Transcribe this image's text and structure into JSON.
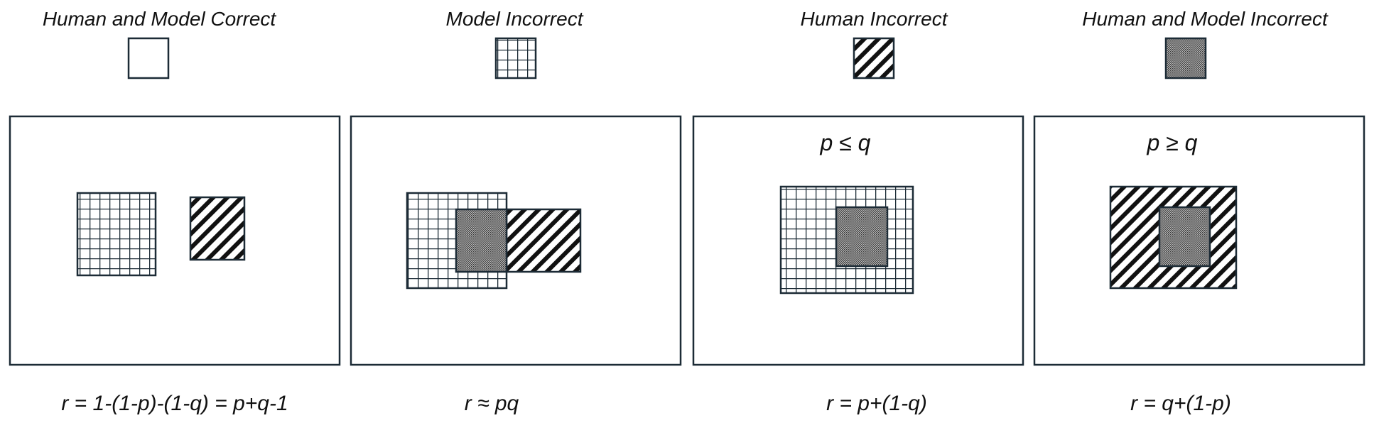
{
  "legend": [
    {
      "label": "Human and Model Correct",
      "pattern": "blank"
    },
    {
      "label": "Model Incorrect",
      "pattern": "grid"
    },
    {
      "label": "Human Incorrect",
      "pattern": "hatch"
    },
    {
      "label": "Human and Model Incorrect",
      "pattern": "dots"
    }
  ],
  "panels": [
    {
      "condition": "",
      "formula": "r = 1-(1-p)-(1-q) = p+q-1"
    },
    {
      "condition": "",
      "formula": "r ≈ pq"
    },
    {
      "condition": "p ≤ q",
      "formula": "r = p+(1-q)"
    },
    {
      "condition": "p ≥ q",
      "formula": "r = q+(1-p)"
    }
  ],
  "colors": {
    "stroke": "#1c2b36",
    "text": "#111111",
    "dots": "#555555"
  }
}
